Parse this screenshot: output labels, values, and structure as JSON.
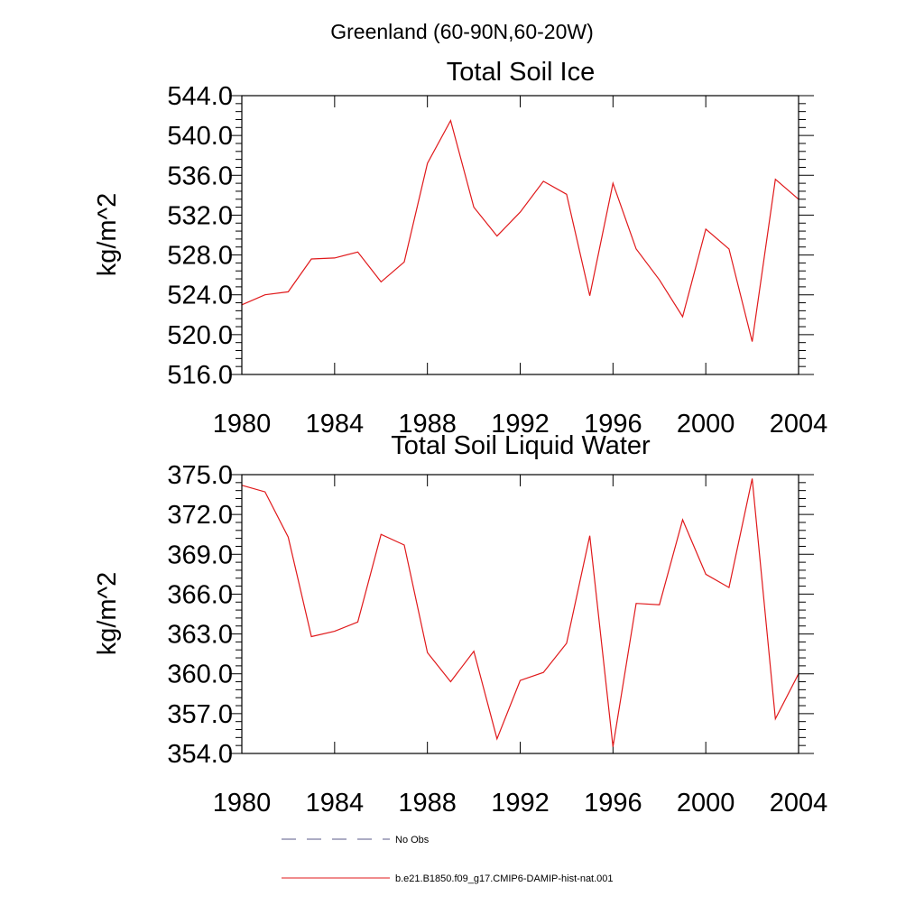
{
  "header": {
    "region": "Greenland (60-90N,60-20W)"
  },
  "legend": {
    "items": [
      {
        "label": "No Obs",
        "style": "dashed",
        "color": "#5a5a8a"
      },
      {
        "label": "b.e21.B1850.f09_g17.CMIP6-DAMIP-hist-nat.001",
        "style": "solid",
        "color": "#e0191b"
      }
    ]
  },
  "chart_data": [
    {
      "type": "line",
      "title": "Total Soil Ice",
      "ylabel": "kg/m^2",
      "xlabel": "",
      "xlim": [
        1980,
        2004
      ],
      "ylim": [
        516,
        544
      ],
      "x_ticks": [
        "1980",
        "1984",
        "1988",
        "1992",
        "1996",
        "2000",
        "2004"
      ],
      "y_ticks": [
        "516.0",
        "520.0",
        "524.0",
        "528.0",
        "532.0",
        "536.0",
        "540.0",
        "544.0"
      ],
      "color": "#e0191b",
      "x": [
        1980,
        1981,
        1982,
        1983,
        1984,
        1985,
        1986,
        1987,
        1988,
        1989,
        1990,
        1991,
        1992,
        1993,
        1994,
        1995,
        1996,
        1997,
        1998,
        1999,
        2000,
        2001,
        2002,
        2003,
        2004
      ],
      "values": [
        523.0,
        524.0,
        524.3,
        527.6,
        527.7,
        528.3,
        525.3,
        527.3,
        537.2,
        541.5,
        532.8,
        529.9,
        532.3,
        535.4,
        534.1,
        523.9,
        535.2,
        528.6,
        525.5,
        521.8,
        530.6,
        528.6,
        519.3,
        535.6,
        533.6
      ]
    },
    {
      "type": "line",
      "title": "Total Soil Liquid Water",
      "ylabel": "kg/m^2",
      "xlabel": "",
      "xlim": [
        1980,
        2004
      ],
      "ylim": [
        354,
        375
      ],
      "x_ticks": [
        "1980",
        "1984",
        "1988",
        "1992",
        "1996",
        "2000",
        "2004"
      ],
      "y_ticks": [
        "354.0",
        "357.0",
        "360.0",
        "363.0",
        "366.0",
        "369.0",
        "372.0",
        "375.0"
      ],
      "color": "#e0191b",
      "x": [
        1980,
        1981,
        1982,
        1983,
        1984,
        1985,
        1986,
        1987,
        1988,
        1989,
        1990,
        1991,
        1992,
        1993,
        1994,
        1995,
        1996,
        1997,
        1998,
        1999,
        2000,
        2001,
        2002,
        2003,
        2004
      ],
      "values": [
        374.2,
        373.7,
        370.3,
        362.8,
        363.2,
        363.9,
        370.5,
        369.7,
        361.6,
        359.4,
        361.7,
        355.1,
        359.5,
        360.1,
        362.3,
        370.4,
        354.5,
        365.3,
        365.2,
        371.6,
        367.5,
        366.5,
        374.7,
        356.6,
        360.0
      ]
    }
  ]
}
